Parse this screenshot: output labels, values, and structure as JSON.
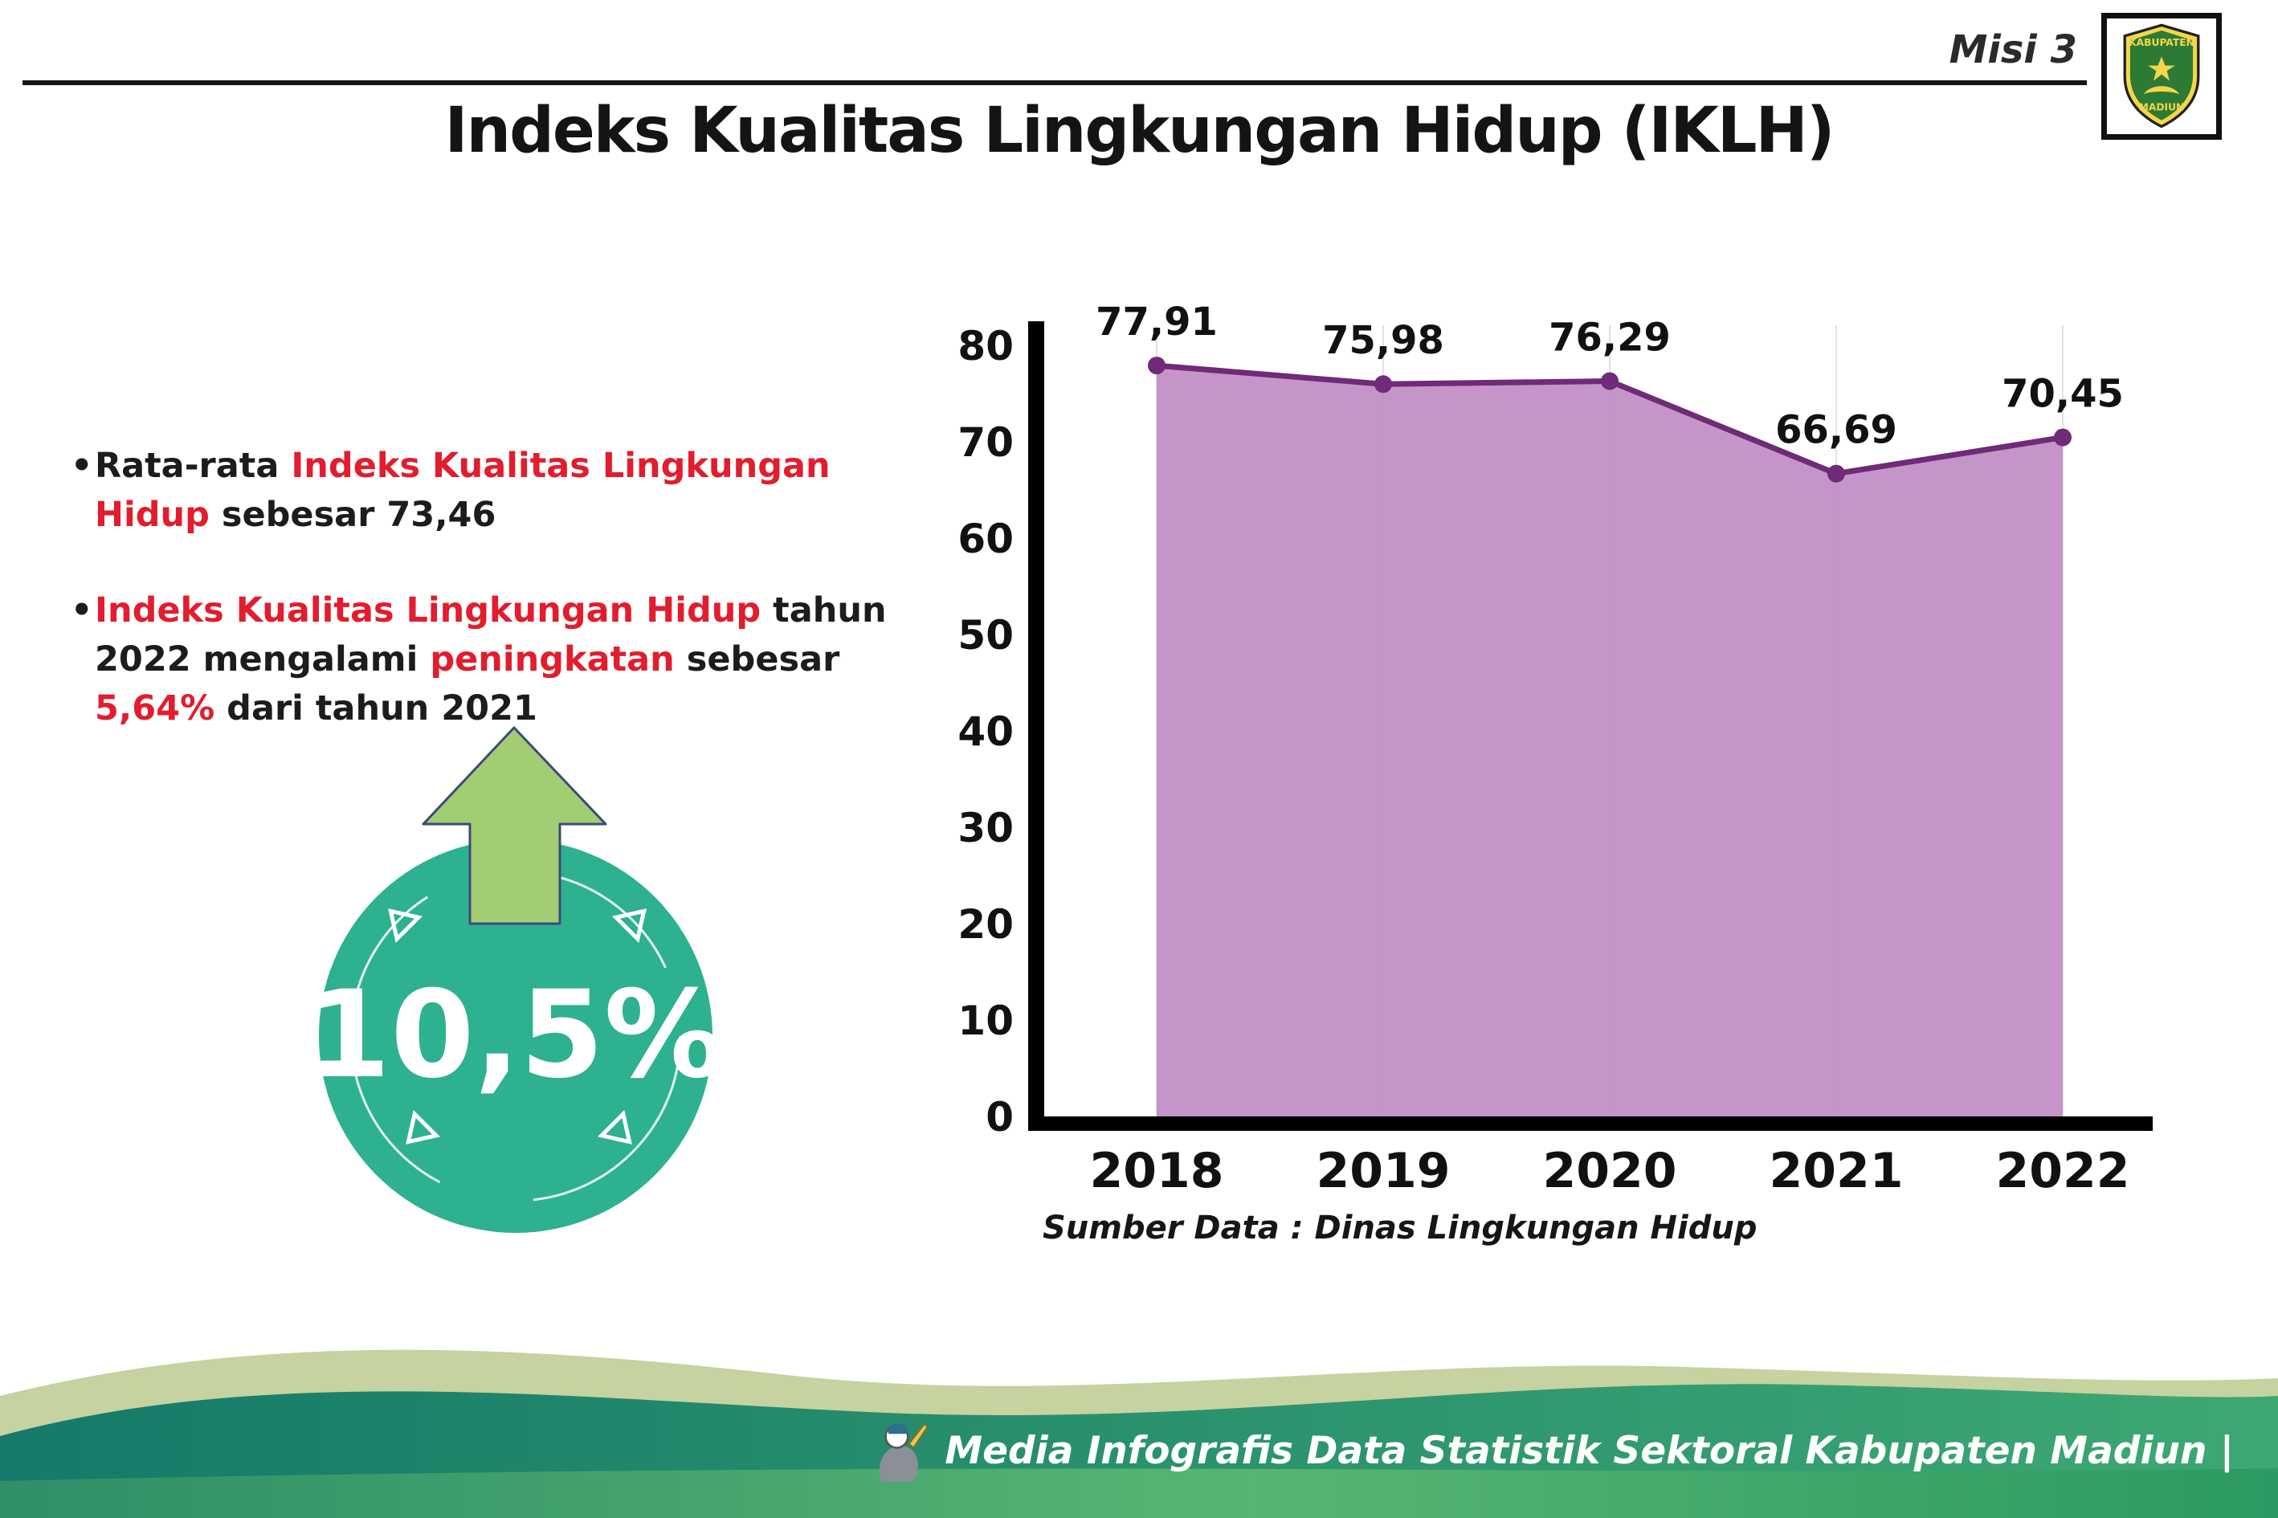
{
  "header": {
    "misi": "Misi 3",
    "title": "Indeks Kualitas Lingkungan Hidup (IKLH)",
    "logo": {
      "top_text": "KABUPATEN",
      "bottom_text": "MADIUN"
    }
  },
  "bullets": [
    {
      "segments": [
        {
          "text": "Rata-rata ",
          "highlight": false
        },
        {
          "text": "Indeks Kualitas Lingkungan Hidup",
          "highlight": true
        },
        {
          "text": " sebesar 73,46",
          "highlight": false
        }
      ]
    },
    {
      "segments": [
        {
          "text": "Indeks Kualitas Lingkungan Hidup",
          "highlight": true
        },
        {
          "text": " tahun 2022 mengalami ",
          "highlight": false
        },
        {
          "text": "peningkatan",
          "highlight": true
        },
        {
          "text": " sebesar ",
          "highlight": false
        },
        {
          "text": "5,64%",
          "highlight": true
        },
        {
          "text": " dari tahun 2021",
          "highlight": false
        }
      ]
    }
  ],
  "badge": {
    "value": "10,5%"
  },
  "chart_data": {
    "type": "area",
    "categories": [
      "2018",
      "2019",
      "2020",
      "2021",
      "2022"
    ],
    "values": [
      77.91,
      75.98,
      76.29,
      66.69,
      70.45
    ],
    "value_labels": [
      "77,91",
      "75,98",
      "76,29",
      "66,69",
      "70,45"
    ],
    "title": "",
    "xlabel": "",
    "ylabel": "",
    "ylim": [
      0,
      80
    ],
    "yticks": [
      0,
      10,
      20,
      30,
      40,
      50,
      60,
      70,
      80
    ],
    "grid": "faint-vertical",
    "legend": "none",
    "area_fill": "#c08cc5",
    "line_color": "#6f2a78",
    "source_note": "Sumber Data : Dinas Lingkungan Hidup"
  },
  "footer": {
    "text": "Media Infografis Data Statistik Sektoral Kabupaten Madiun |"
  },
  "icons": {
    "up_arrow": "up-arrow-icon",
    "crest": "kabupaten-madiun-crest-icon",
    "mascot": "mascot-icon"
  },
  "colors": {
    "highlight_red": "#e11d2e",
    "circle_teal": "#2eb191",
    "arrow_green": "#a3cd73",
    "area_purple": "#c08cc5",
    "line_purple": "#6f2a78",
    "footer_sage": "#c6d2a0",
    "footer_teal": "#157a69",
    "footer_green": "#3ea873"
  }
}
